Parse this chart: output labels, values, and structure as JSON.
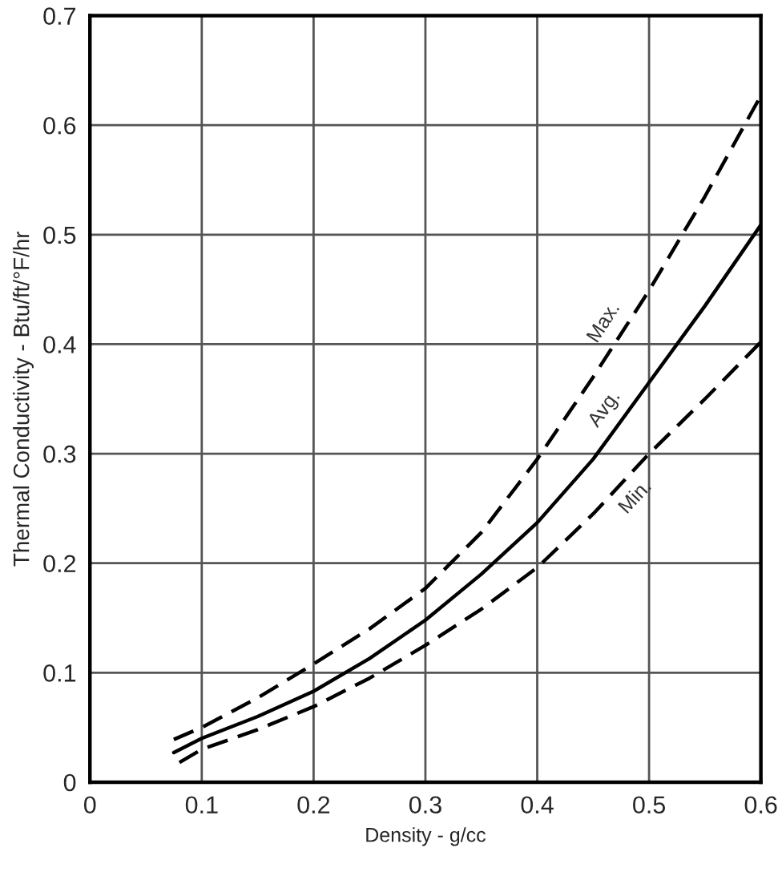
{
  "chart_data": {
    "type": "line",
    "xlabel": "Density - g/cc",
    "ylabel": "Thermal Conductivity - Btu/ft/°F/hr",
    "xlim": [
      0,
      0.6
    ],
    "ylim": [
      0,
      0.7
    ],
    "xticks": [
      0,
      0.1,
      0.2,
      0.3,
      0.4,
      0.5,
      0.6
    ],
    "yticks": [
      0,
      0.1,
      0.2,
      0.3,
      0.4,
      0.5,
      0.6,
      0.7
    ],
    "grid": true,
    "legend": false,
    "series": [
      {
        "name": "Max.",
        "color": "#000000",
        "line_style": "dashed",
        "x": [
          0.075,
          0.1,
          0.15,
          0.2,
          0.25,
          0.3,
          0.35,
          0.4,
          0.45,
          0.5,
          0.55,
          0.6
        ],
        "values": [
          0.039,
          0.05,
          0.077,
          0.108,
          0.14,
          0.177,
          0.228,
          0.295,
          0.37,
          0.449,
          0.535,
          0.627
        ]
      },
      {
        "name": "Avg.",
        "color": "#000000",
        "line_style": "solid",
        "x": [
          0.075,
          0.1,
          0.15,
          0.2,
          0.25,
          0.3,
          0.35,
          0.4,
          0.45,
          0.5,
          0.55,
          0.6
        ],
        "values": [
          0.027,
          0.04,
          0.06,
          0.083,
          0.113,
          0.148,
          0.19,
          0.237,
          0.295,
          0.365,
          0.435,
          0.509
        ]
      },
      {
        "name": "Min.",
        "color": "#000000",
        "line_style": "dashed",
        "x": [
          0.08,
          0.1,
          0.15,
          0.2,
          0.25,
          0.3,
          0.35,
          0.4,
          0.45,
          0.5,
          0.55,
          0.6
        ],
        "values": [
          0.018,
          0.03,
          0.048,
          0.069,
          0.095,
          0.125,
          0.158,
          0.196,
          0.245,
          0.3,
          0.35,
          0.402
        ]
      }
    ]
  }
}
